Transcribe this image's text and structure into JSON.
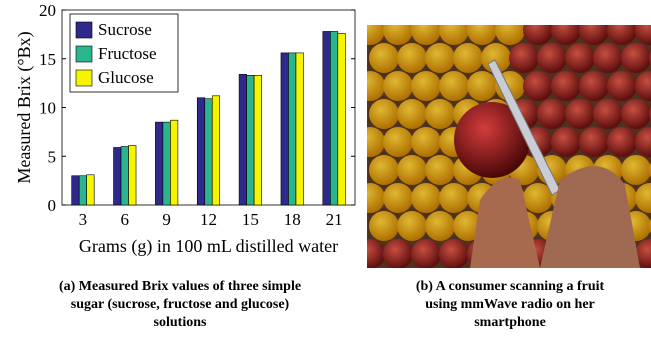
{
  "chart_data": {
    "type": "bar",
    "categories": [
      "3",
      "6",
      "9",
      "12",
      "15",
      "18",
      "21"
    ],
    "series": [
      {
        "name": "Sucrose",
        "color": "#2e2a8c",
        "values": [
          3.0,
          5.9,
          8.5,
          11.0,
          13.4,
          15.6,
          17.8
        ]
      },
      {
        "name": "Fructose",
        "color": "#2bb58f",
        "values": [
          3.0,
          6.0,
          8.5,
          10.9,
          13.3,
          15.6,
          17.8
        ]
      },
      {
        "name": "Glucose",
        "color": "#f5f500",
        "values": [
          3.1,
          6.1,
          8.7,
          11.2,
          13.3,
          15.6,
          17.6
        ]
      }
    ],
    "ylim": [
      0,
      20
    ],
    "yticks": [
      0,
      5,
      10,
      15,
      20
    ],
    "ylabel": "Measured Brix (°Bx)",
    "xlabel": "Grams (g) in 100 mL distilled water",
    "legend": "upper-left",
    "grid": false
  },
  "captions": [
    {
      "lines": [
        "(a) Measured Brix values of three simple",
        "sugar (sucrose, fructose and glucose)",
        "solutions"
      ]
    },
    {
      "lines": [
        "(b) A consumer scanning a fruit",
        "using mmWave radio on her",
        "smartphone"
      ]
    }
  ]
}
